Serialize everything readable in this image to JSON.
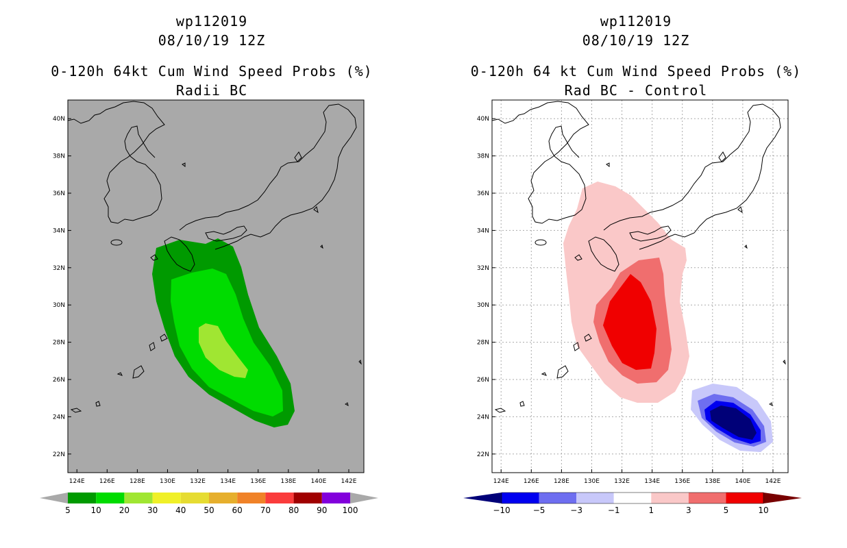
{
  "chart_data": [
    {
      "type": "heatmap",
      "storm_id": "wp112019",
      "date": "08/10/19 12Z",
      "title": "0-120h 64kt Cum Wind Speed Probs (%)",
      "subtitle": "Radii BC",
      "x_ticks": [
        "124E",
        "126E",
        "128E",
        "130E",
        "132E",
        "134E",
        "136E",
        "138E",
        "140E",
        "142E"
      ],
      "y_ticks": [
        "22N",
        "24N",
        "26N",
        "28N",
        "30N",
        "32N",
        "34N",
        "36N",
        "38N",
        "40N"
      ],
      "xlim": [
        123.4,
        143.0
      ],
      "ylim": [
        21.0,
        41.0
      ],
      "colorbar": {
        "labels": [
          "5",
          "10",
          "20",
          "30",
          "40",
          "50",
          "60",
          "70",
          "80",
          "90",
          "100"
        ],
        "colors": [
          "#009a00",
          "#00dc00",
          "#a0e632",
          "#f0f028",
          "#e6dc32",
          "#e6af2d",
          "#f08228",
          "#fa3c3c",
          "#a00000",
          "#8200dc"
        ]
      }
    },
    {
      "type": "heatmap",
      "storm_id": "wp112019",
      "date": "08/10/19 12Z",
      "title": "0-120h 64 kt Cum Wind Speed Probs (%)",
      "subtitle": "Rad BC - Control",
      "x_ticks": [
        "124E",
        "126E",
        "128E",
        "130E",
        "132E",
        "134E",
        "136E",
        "138E",
        "140E",
        "142E"
      ],
      "y_ticks": [
        "22N",
        "24N",
        "26N",
        "28N",
        "30N",
        "32N",
        "34N",
        "36N",
        "38N",
        "40N"
      ],
      "xlim": [
        123.4,
        143.0
      ],
      "ylim": [
        21.0,
        41.0
      ],
      "colorbar": {
        "labels": [
          "-10",
          "-5",
          "-3",
          "-1",
          "1",
          "3",
          "5",
          "10"
        ],
        "colors": [
          "#000078",
          "#0000f0",
          "#6e6ef0",
          "#c8c8fa",
          "#ffffff",
          "#fac8c8",
          "#f06e6e",
          "#f00000",
          "#780000"
        ]
      }
    }
  ]
}
